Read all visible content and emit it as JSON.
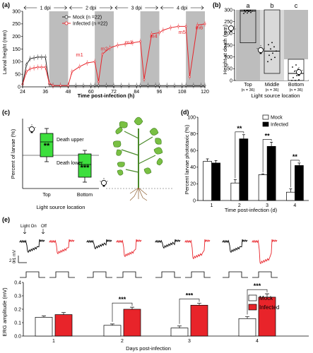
{
  "colors": {
    "mock": "#2b2b2b",
    "infected": "#e8242a",
    "dark_shade": "#bdbdbd",
    "mid_shade": "#d9d9d9",
    "green": "#3ddf3d",
    "leaf": "#79c043"
  },
  "panels": {
    "a": "(a)",
    "b": "(b)",
    "c": "(c)",
    "d": "(d)",
    "e": "(e)"
  },
  "chart_data": [
    {
      "id": "a",
      "type": "line",
      "xlabel": "Time post-infection (h)",
      "ylabel": "Larval height (mm)",
      "xticks": [
        "24",
        "36",
        "48",
        "60",
        "72",
        "84",
        "96",
        "108",
        "120"
      ],
      "yticks": [
        "0",
        "50",
        "100",
        "150",
        "200",
        "250",
        "300"
      ],
      "xlim": [
        24,
        120
      ],
      "ylim": [
        0,
        300
      ],
      "dpi_labels": [
        "1 dpi",
        "2 dpi",
        "3 dpi",
        "4 dpi"
      ],
      "dark_periods": [
        [
          38,
          48
        ],
        [
          62,
          72
        ],
        [
          86,
          96
        ],
        [
          110,
          120
        ]
      ],
      "annotations": [
        "m1",
        "m2",
        "m3",
        "m4",
        "m5",
        "m6"
      ],
      "legend": [
        "Mock (n =22)",
        "Infected (n =22)"
      ],
      "series": [
        {
          "name": "Mock (n =22)",
          "x": [
            24,
            26,
            28,
            30,
            32,
            34,
            36,
            38,
            40,
            44,
            48,
            52,
            56,
            60,
            62,
            64,
            68,
            72,
            76,
            80,
            84,
            86,
            90,
            94,
            96,
            100,
            104,
            108,
            110,
            114,
            118,
            120
          ],
          "y": [
            10,
            88,
            112,
            115,
            118,
            118,
            118,
            12,
            5,
            5,
            5,
            5,
            5,
            5,
            5,
            5,
            5,
            5,
            5,
            5,
            5,
            5,
            5,
            5,
            5,
            5,
            5,
            5,
            5,
            5,
            5,
            5
          ]
        },
        {
          "name": "Infected (n =22)",
          "x": [
            24,
            26,
            28,
            30,
            32,
            34,
            36,
            38,
            40,
            44,
            48,
            50,
            54,
            58,
            62,
            64,
            66,
            70,
            74,
            78,
            82,
            86,
            88,
            92,
            96,
            98,
            102,
            106,
            110,
            112,
            116,
            120
          ],
          "y": [
            10,
            60,
            72,
            75,
            78,
            78,
            78,
            15,
            5,
            5,
            5,
            60,
            80,
            95,
            100,
            20,
            130,
            155,
            165,
            170,
            175,
            180,
            30,
            210,
            215,
            225,
            235,
            240,
            240,
            40,
            245,
            250
          ]
        }
      ]
    },
    {
      "id": "b",
      "type": "box",
      "ylabel": "Height at death (mm)",
      "xlabel": "Light source location",
      "yticks": [
        "0",
        "50",
        "100",
        "150",
        "200",
        "250",
        "300"
      ],
      "ylim": [
        0,
        300
      ],
      "categories": [
        "Top",
        "Middle",
        "Bottom"
      ],
      "n_labels": [
        "(n = 36)",
        "(n = 36)",
        "(n = 36)"
      ],
      "letters": [
        "a",
        "b",
        "c"
      ],
      "medians": [
        295,
        125,
        30
      ]
    },
    {
      "id": "c",
      "type": "box",
      "ylabel": "Percent of larvae (%)",
      "xlabel": "Light source location",
      "categories": [
        "Top",
        "Bottom"
      ],
      "annotations": [
        "Death upper",
        "Death lower"
      ],
      "significance": [
        "**",
        "***"
      ]
    },
    {
      "id": "d",
      "type": "bar",
      "ylabel": "Percent larvae phototaxic (%)",
      "xlabel": "Time post-infection (d)",
      "categories": [
        "1",
        "2",
        "3",
        "4"
      ],
      "yticks": [
        "0",
        "20",
        "40",
        "60",
        "80",
        "100"
      ],
      "ylim": [
        0,
        100
      ],
      "legend": [
        "Mock",
        "Infected"
      ],
      "significance": [
        "",
        "**",
        "**",
        "**"
      ],
      "series": [
        {
          "name": "Mock",
          "values": [
            47,
            21,
            31,
            10
          ],
          "errors": [
            3,
            4,
            1,
            4
          ]
        },
        {
          "name": "Infected",
          "values": [
            45,
            74,
            65,
            42
          ],
          "errors": [
            3,
            5,
            5,
            3
          ]
        }
      ]
    },
    {
      "id": "e",
      "type": "bar",
      "ylabel": "ERG amplitude (mV)",
      "xlabel": "Days post-infection",
      "categories": [
        "1",
        "2",
        "3",
        "4"
      ],
      "yticks": [
        "0.0",
        "0.1",
        "0.2",
        "0.3",
        "0.4"
      ],
      "ylim": [
        0,
        0.4
      ],
      "legend": [
        "Mock",
        "Infected"
      ],
      "significance": [
        "",
        "***",
        "***",
        "***"
      ],
      "trace_labels": {
        "light_on": "Light On",
        "off": "Off",
        "scale_mv": "0.1 mV",
        "scale_s": "2 s"
      },
      "series": [
        {
          "name": "Mock",
          "values": [
            0.14,
            0.08,
            0.06,
            0.13
          ],
          "errors": [
            0.01,
            0.01,
            0.015,
            0.015
          ]
        },
        {
          "name": "Infected",
          "values": [
            0.16,
            0.2,
            0.23,
            0.29
          ],
          "errors": [
            0.015,
            0.015,
            0.015,
            0.025
          ]
        }
      ]
    }
  ]
}
